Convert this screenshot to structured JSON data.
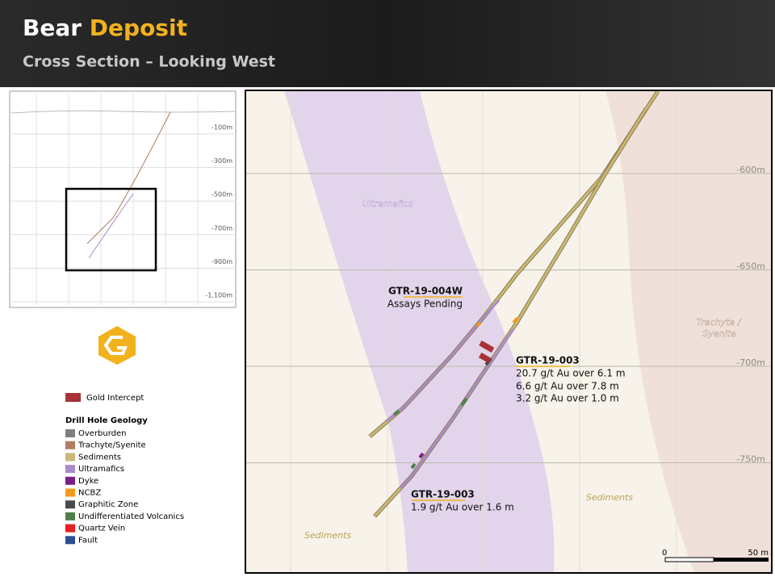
{
  "header": {
    "title_part1": "Bear",
    "title_part2": "Deposit",
    "subtitle": "Cross Section – Looking West"
  },
  "inset": {
    "depth_labels": [
      "-100m",
      "-300m",
      "-500m",
      "-700m",
      "-900m",
      "-1,100m"
    ]
  },
  "legend": {
    "intercept": {
      "label": "Gold Intercept",
      "color": "#a83236"
    },
    "geology_title": "Drill Hole Geology",
    "items": [
      {
        "label": "Overburden",
        "color": "#7f7f7f"
      },
      {
        "label": "Trachyte/Syenite",
        "color": "#b07d62"
      },
      {
        "label": "Sediments",
        "color": "#c9b877"
      },
      {
        "label": "Ultramafics",
        "color": "#a98bc9"
      },
      {
        "label": "Dyke",
        "color": "#7b1f86"
      },
      {
        "label": "NCBZ",
        "color": "#f39a1e"
      },
      {
        "label": "Graphitic Zone",
        "color": "#4a4a4a"
      },
      {
        "label": "Undifferentiated Volcanics",
        "color": "#4f7f4a"
      },
      {
        "label": "Quartz Vein",
        "color": "#e8201f"
      },
      {
        "label": "Fault",
        "color": "#2c4f8f"
      }
    ]
  },
  "section": {
    "depth_labels": [
      "-600m",
      "-650m",
      "-700m",
      "-750m"
    ],
    "units": {
      "ultramafics": "Ultramafics",
      "trachyte_line1": "Trachyte /",
      "trachyte_line2": "Syenite",
      "sediments_right": "Sediments",
      "sediments_left": "Sediments"
    },
    "holes": [
      {
        "name": "GTR-19-004W",
        "lines": [
          "Assays Pending"
        ]
      },
      {
        "name": "GTR-19-003",
        "lines": [
          "20.7 g/t Au over 6.1 m",
          "6.6 g/t Au over 7.8 m",
          "3.2 g/t Au over 1.0 m"
        ]
      },
      {
        "name": "GTR-19-003",
        "lines": [
          "1.9 g/t Au over 1.6 m"
        ]
      }
    ],
    "scale": {
      "start": "0",
      "end": "50 m"
    }
  }
}
